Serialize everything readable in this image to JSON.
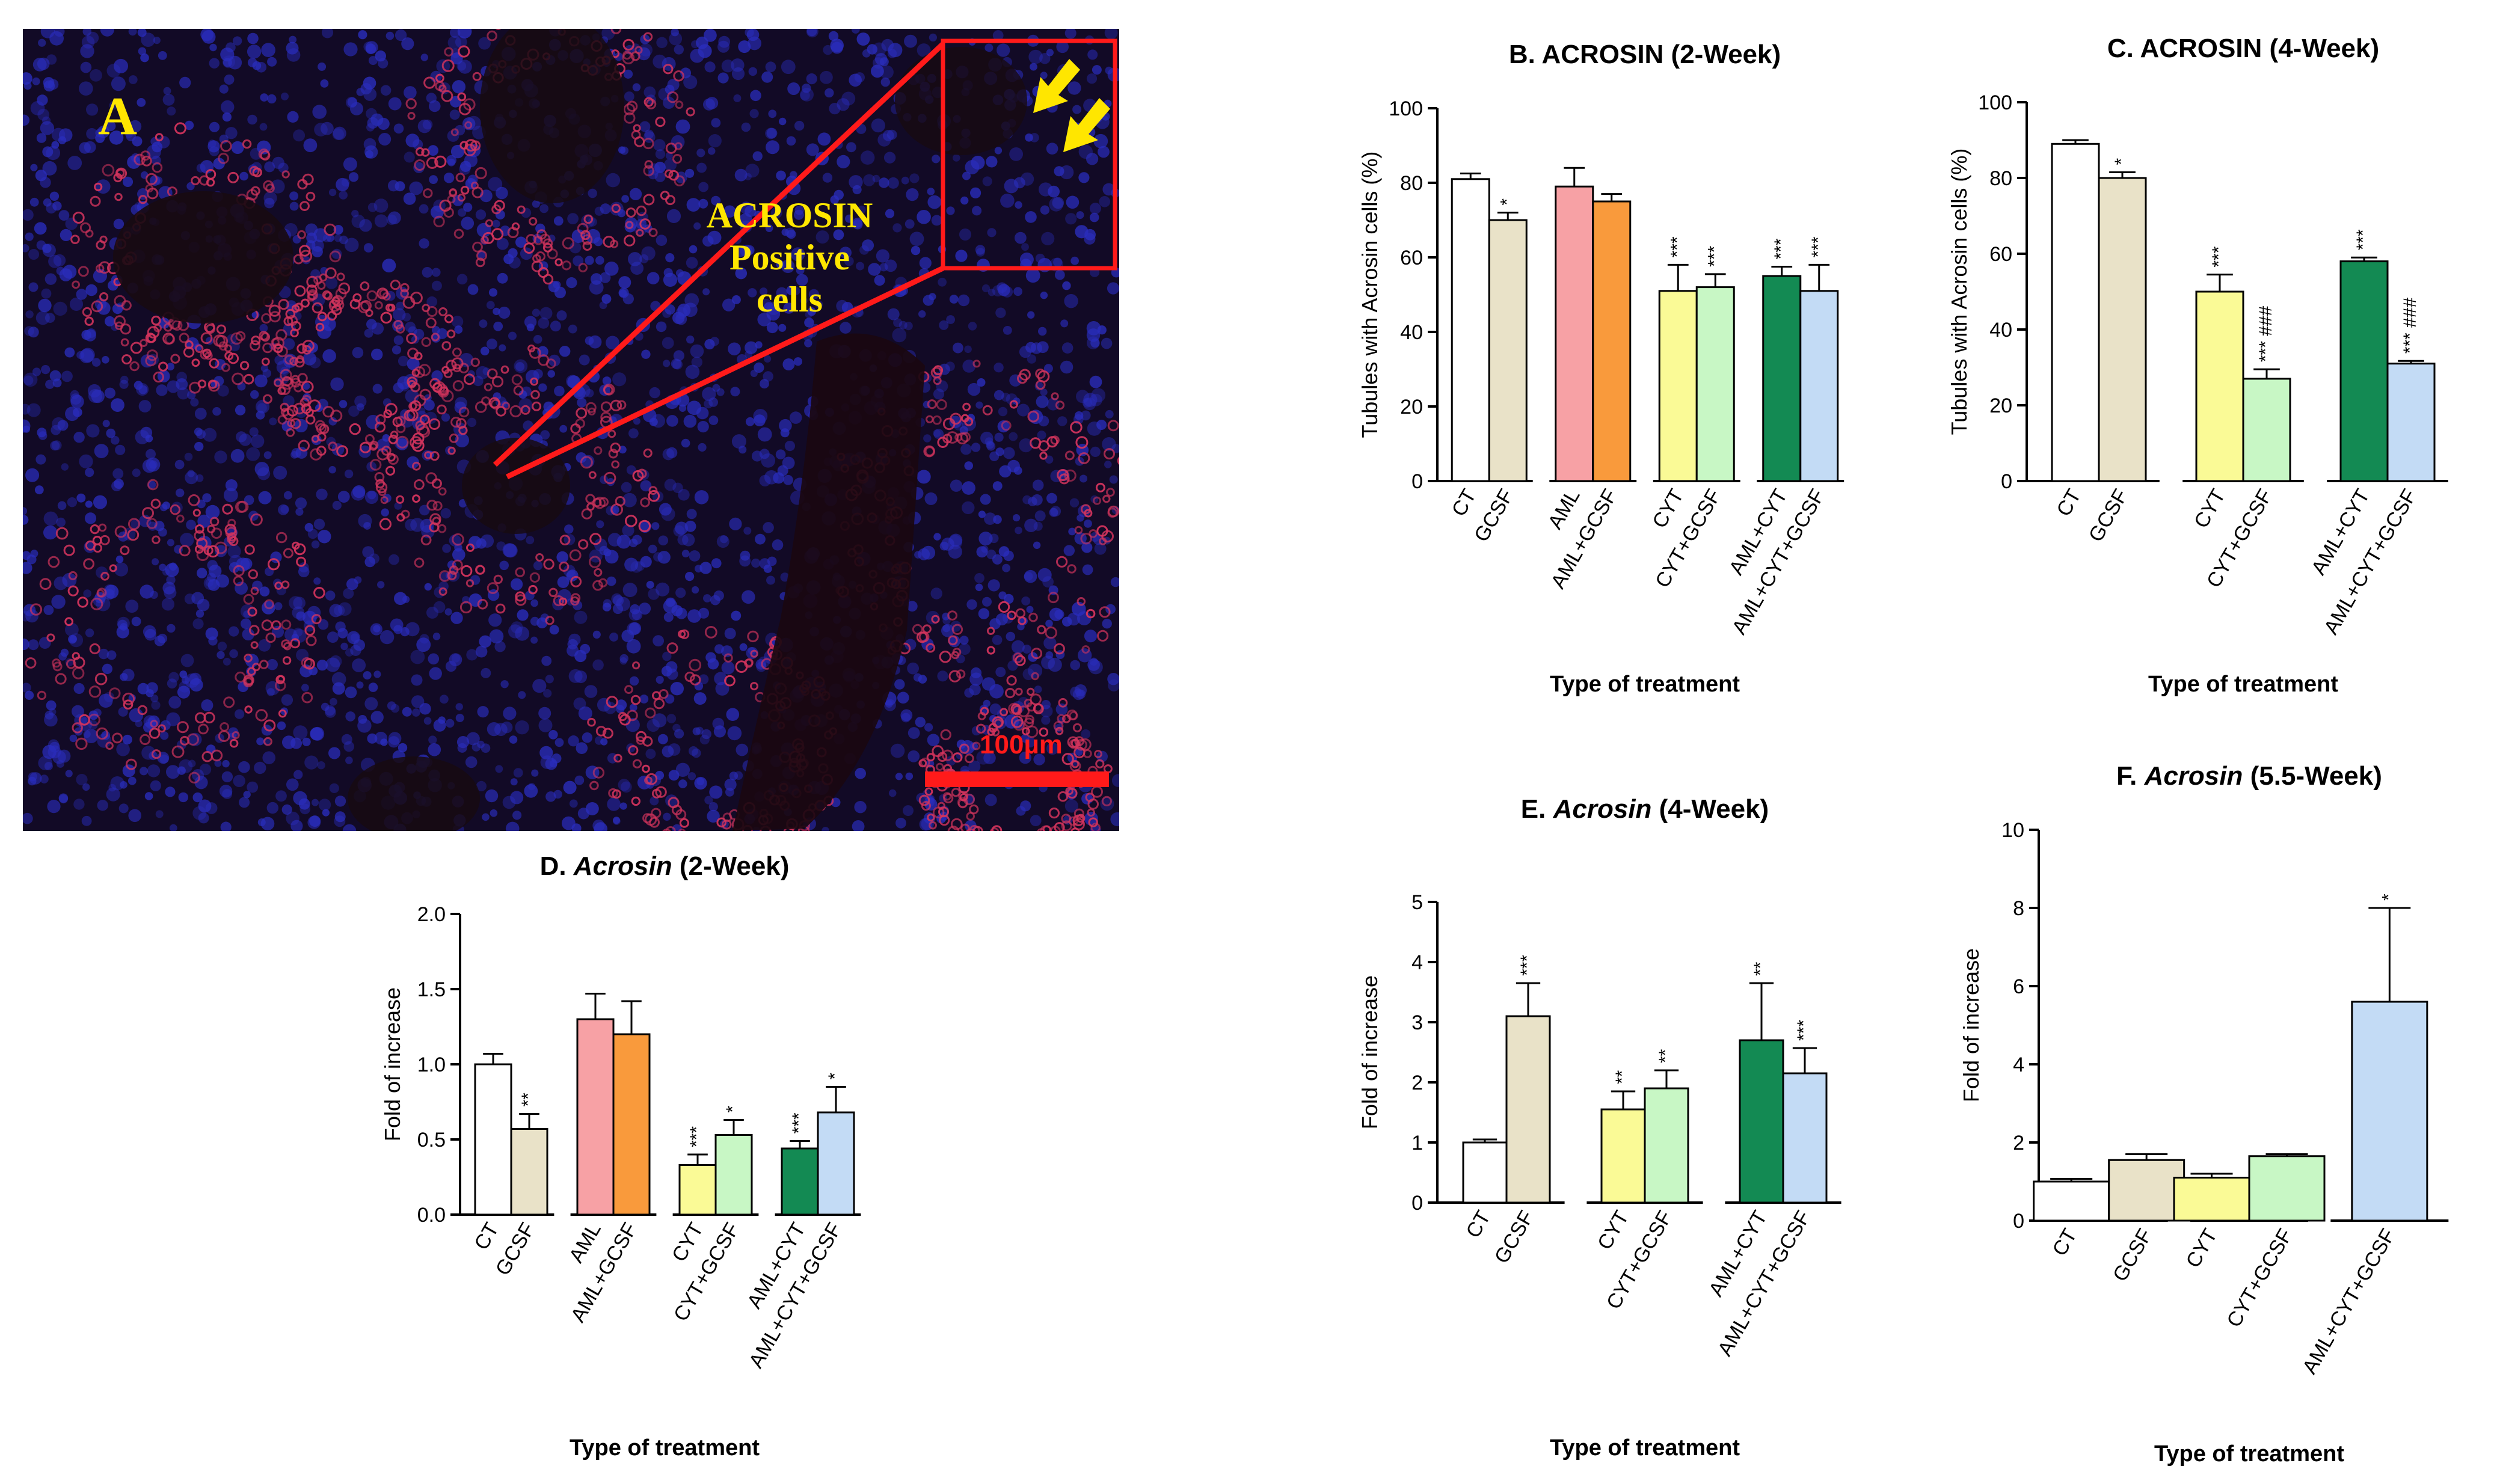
{
  "panel_a": {
    "letter": "A",
    "annotation_lines": [
      "ACROSIN",
      "Positive",
      "cells"
    ],
    "scale_bar_label": "100µm",
    "colors": {
      "background": "#120a26",
      "nuclei": "#2a2dbd",
      "positive_cells": "#d3345d",
      "highlight": "#ff1a1a",
      "text": "#ffe600"
    }
  },
  "colors": {
    "CT": "#ffffff",
    "GCSF": "#e9e2c8",
    "AML": "#f7a1a5",
    "AML+GCSF": "#f99a3c",
    "CYT": "#fafa96",
    "CYT+GCSF": "#c8f7c5",
    "AML+CYT": "#138a53",
    "AML+CYT+GCSF": "#c3dbf5"
  },
  "chart_data": [
    {
      "id": "B",
      "type": "bar",
      "title_prefix": "B. ",
      "title_italic": "",
      "title_rest": "ACROSIN (2-Week)",
      "title_bold": true,
      "ylabel": "Tubules with Acrosin cells (%)",
      "xlabel": "Type of treatment",
      "ylim": [
        0,
        100
      ],
      "yticks": [
        "0",
        "20",
        "40",
        "60",
        "80",
        "100"
      ],
      "groups": [
        [
          "CT",
          "GCSF"
        ],
        [
          "AML",
          "AML+GCSF"
        ],
        [
          "CYT",
          "CYT+GCSF"
        ],
        [
          "AML+CYT",
          "AML+CYT+GCSF"
        ]
      ],
      "values": [
        81,
        70,
        79,
        75,
        51,
        52,
        55,
        51
      ],
      "errors": [
        1.5,
        2,
        5,
        2,
        7,
        3.5,
        2.5,
        7
      ],
      "annotations": [
        "",
        "*",
        "",
        "",
        "***",
        "***",
        "***",
        "***"
      ]
    },
    {
      "id": "C",
      "type": "bar",
      "title_prefix": "C. ",
      "title_italic": "",
      "title_rest": "ACROSIN (4-Week)",
      "title_bold": true,
      "ylabel": "Tubules with Acrosin cells (%)",
      "xlabel": "Type of treatment",
      "ylim": [
        0,
        100
      ],
      "yticks": [
        "0",
        "20",
        "40",
        "60",
        "80",
        "100"
      ],
      "groups": [
        [
          "CT",
          "GCSF"
        ],
        [
          "CYT",
          "CYT+GCSF"
        ],
        [
          "AML+CYT",
          "AML+CYT+GCSF"
        ]
      ],
      "values": [
        89,
        80,
        50,
        27,
        58,
        31
      ],
      "errors": [
        1,
        1.5,
        4.5,
        2.5,
        1,
        0.7
      ],
      "annotations": [
        "",
        "*",
        "***",
        "*** ###",
        "***",
        "*** ###"
      ]
    },
    {
      "id": "D",
      "type": "bar",
      "title_prefix": "D. ",
      "title_italic": "Acrosin",
      "title_rest": " (2-Week)",
      "title_bold": true,
      "ylabel": "Fold of increase",
      "xlabel": "Type of treatment",
      "ylim": [
        0,
        2
      ],
      "yticks": [
        "0.0",
        "0.5",
        "1.0",
        "1.5",
        "2.0"
      ],
      "groups": [
        [
          "CT",
          "GCSF"
        ],
        [
          "AML",
          "AML+GCSF"
        ],
        [
          "CYT",
          "CYT+GCSF"
        ],
        [
          "AML+CYT",
          "AML+CYT+GCSF"
        ]
      ],
      "values": [
        1.0,
        0.57,
        1.3,
        1.2,
        0.33,
        0.53,
        0.44,
        0.68
      ],
      "errors": [
        0.07,
        0.1,
        0.17,
        0.22,
        0.07,
        0.1,
        0.05,
        0.17
      ],
      "annotations": [
        "",
        "**",
        "",
        "",
        "***",
        "*",
        "***",
        "*"
      ]
    },
    {
      "id": "E",
      "type": "bar",
      "title_prefix": "E. ",
      "title_italic": "Acrosin",
      "title_rest": " (4-Week)",
      "title_bold": true,
      "ylabel": "Fold of increase",
      "xlabel": "Type of treatment",
      "ylim": [
        0,
        5
      ],
      "yticks": [
        "0",
        "1",
        "2",
        "3",
        "4",
        "5"
      ],
      "groups": [
        [
          "CT",
          "GCSF"
        ],
        [
          "CYT",
          "CYT+GCSF"
        ],
        [
          "AML+CYT",
          "AML+CYT+GCSF"
        ]
      ],
      "values": [
        1.0,
        3.1,
        1.55,
        1.9,
        2.7,
        2.15
      ],
      "errors": [
        0.05,
        0.55,
        0.3,
        0.3,
        0.95,
        0.42
      ],
      "annotations": [
        "",
        "***",
        "**",
        "**",
        "**",
        "***"
      ]
    },
    {
      "id": "F",
      "type": "bar",
      "title_prefix": "F. ",
      "title_italic": "Acrosin",
      "title_rest": " (5.5-Week)",
      "title_bold": true,
      "ylabel": "Fold of increase",
      "xlabel": "Type of treatment",
      "ylim": [
        0,
        10
      ],
      "yticks": [
        "0",
        "2",
        "4",
        "6",
        "8",
        "10"
      ],
      "groups": [
        [
          "CT",
          "GCSF"
        ],
        [
          "CYT",
          "CYT+GCSF"
        ],
        [
          "AML+CYT+GCSF"
        ]
      ],
      "values": [
        1.0,
        1.55,
        1.1,
        1.65,
        5.6
      ],
      "errors": [
        0.07,
        0.15,
        0.1,
        0.05,
        2.4
      ],
      "annotations": [
        "",
        "",
        "",
        "",
        "*"
      ]
    }
  ]
}
